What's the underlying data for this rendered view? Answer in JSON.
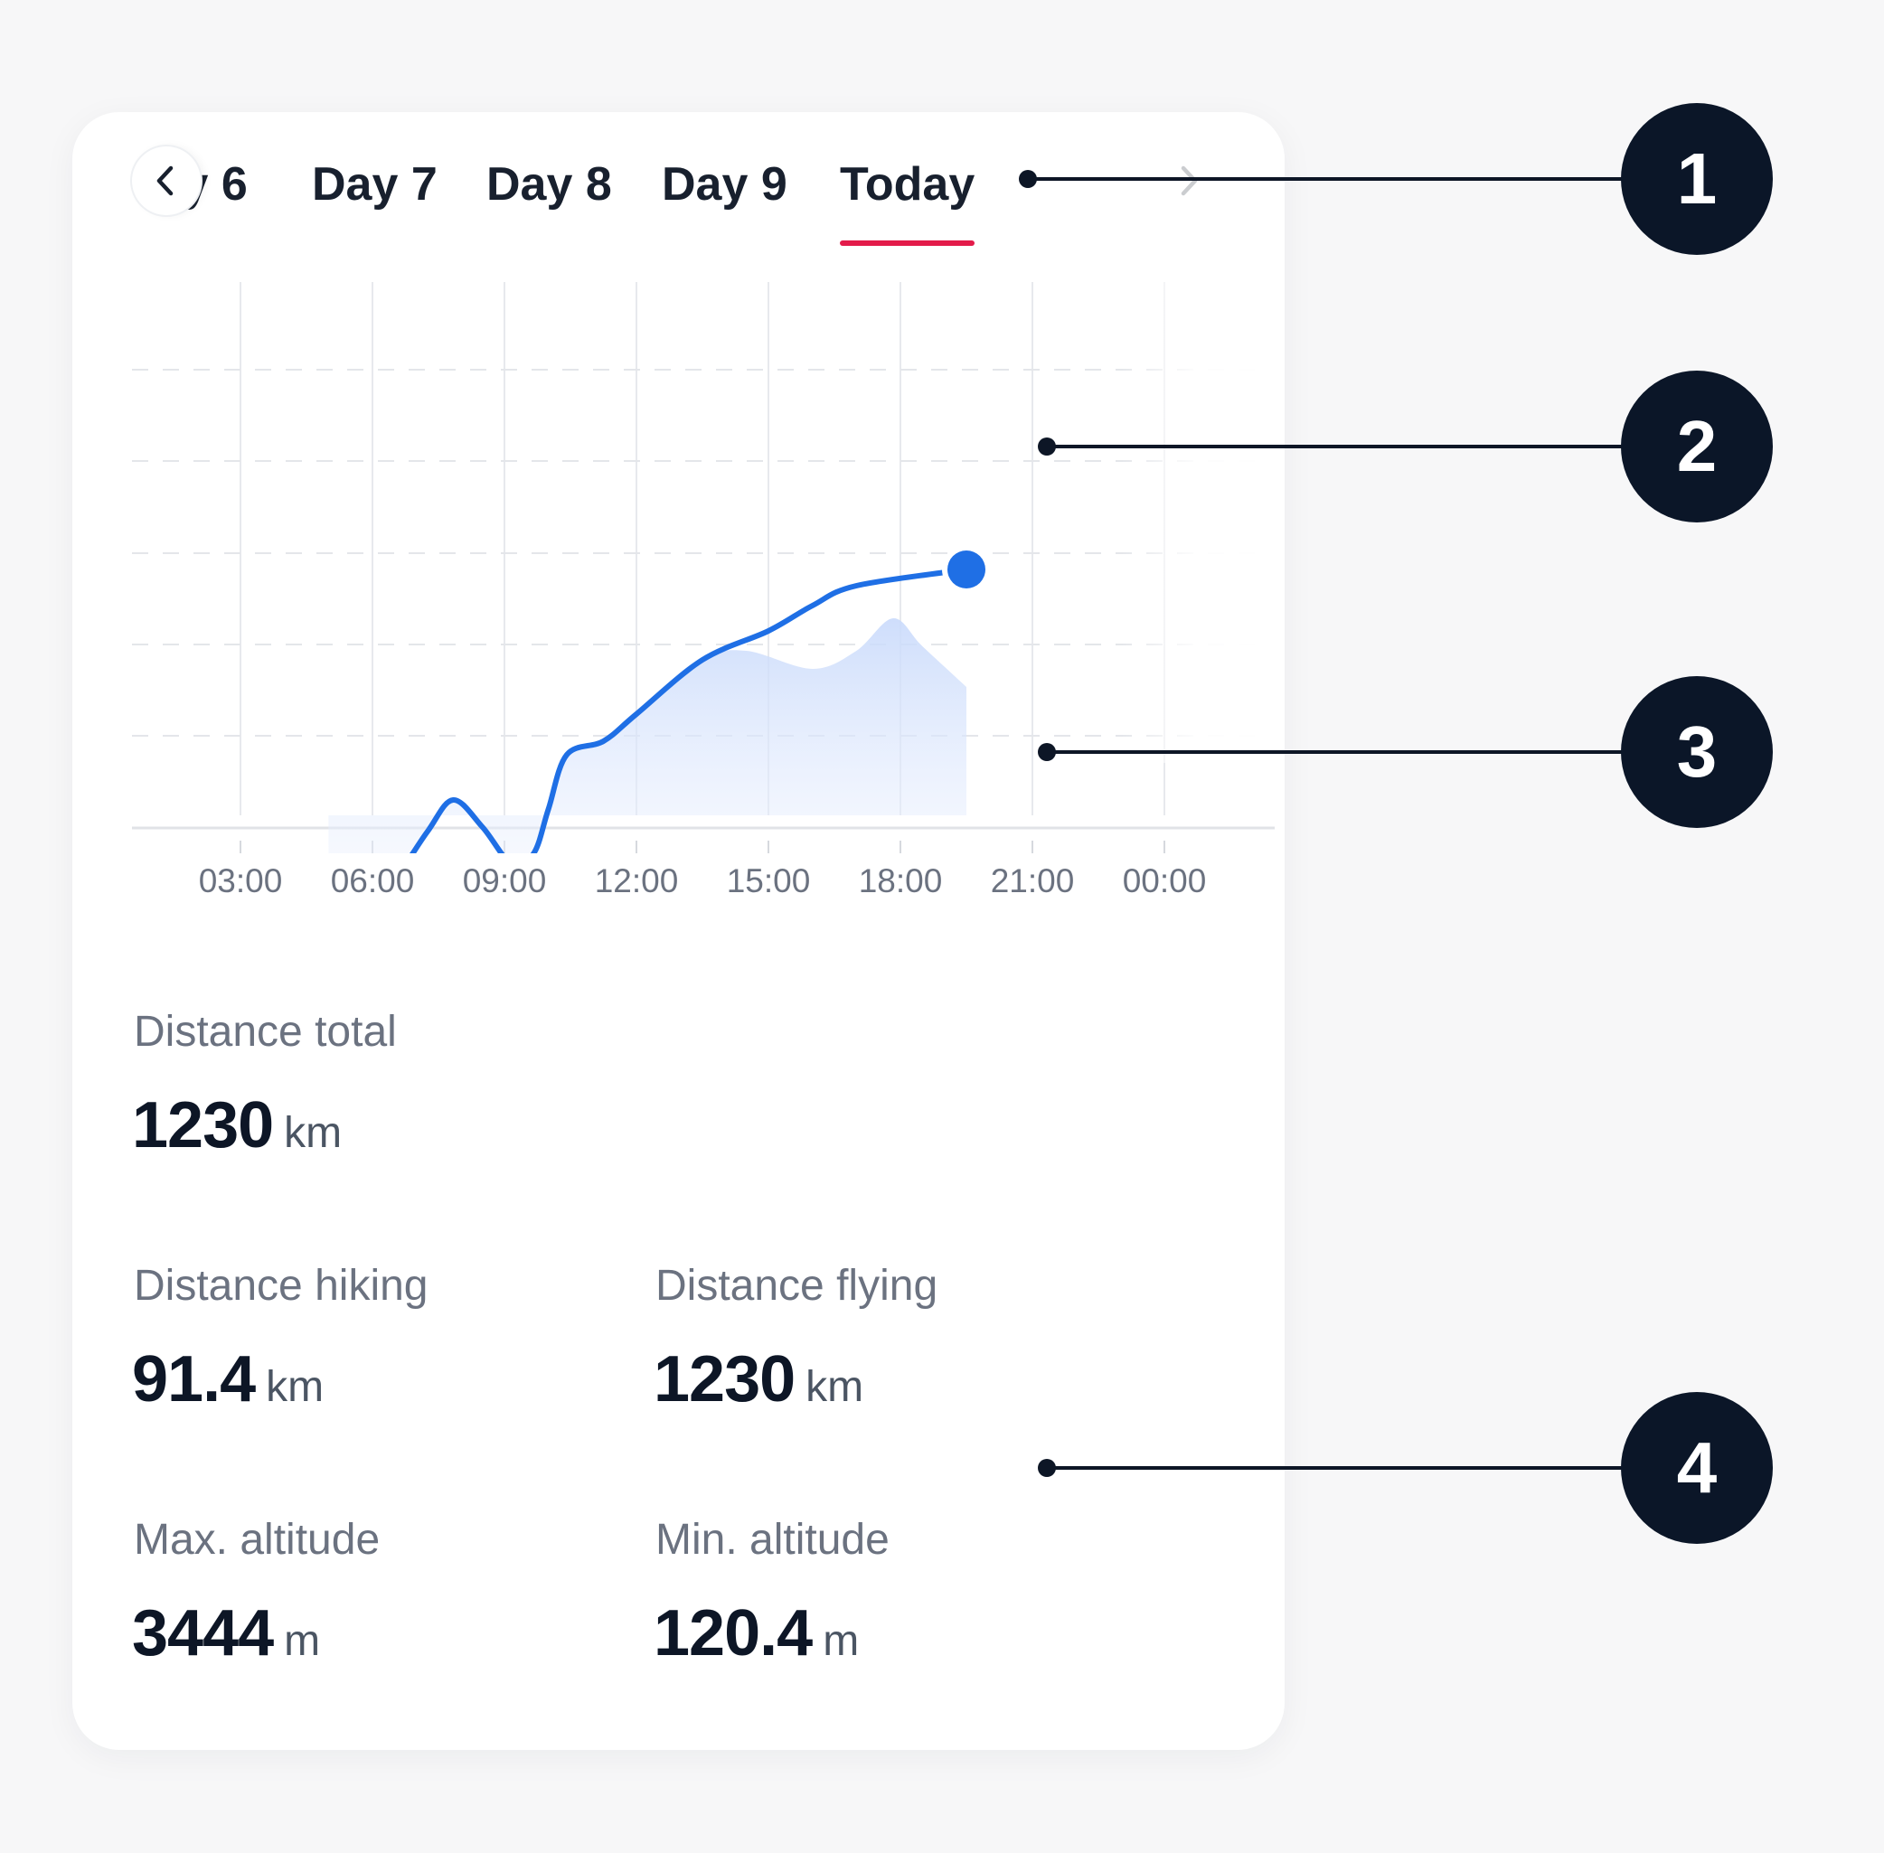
{
  "tabs": {
    "items": [
      {
        "label": "Day 6"
      },
      {
        "label": "Day 7"
      },
      {
        "label": "Day 8"
      },
      {
        "label": "Day 9"
      },
      {
        "label": "Today",
        "active": true
      }
    ],
    "prev_icon": "chevron-left-icon",
    "next_icon": "chevron-right-icon",
    "active_color": "#e31b4a"
  },
  "chart_data": {
    "type": "line",
    "x_ticks": [
      "03:00",
      "06:00",
      "09:00",
      "12:00",
      "15:00",
      "18:00",
      "21:00",
      "00:00"
    ],
    "series": [
      {
        "color": "#1f6fe5",
        "points": [
          {
            "t": "05:00",
            "v": 0.95
          },
          {
            "t": "06:00",
            "v": 0.82
          },
          {
            "t": "06:30",
            "v": 1.8
          },
          {
            "t": "07:15",
            "v": 7.0
          },
          {
            "t": "07:50",
            "v": 10.5
          },
          {
            "t": "08:30",
            "v": 7.5
          },
          {
            "t": "09:10",
            "v": 3.4
          },
          {
            "t": "09:40",
            "v": 4.6
          },
          {
            "t": "10:00",
            "v": 9.5
          },
          {
            "t": "10:25",
            "v": 15.5
          },
          {
            "t": "11:15",
            "v": 17.0
          },
          {
            "t": "12:00",
            "v": 20.0
          },
          {
            "t": "13:30",
            "v": 26.0
          },
          {
            "t": "15:00",
            "v": 29.2
          },
          {
            "t": "16:00",
            "v": 32.0
          },
          {
            "t": "17:00",
            "v": 34.2
          },
          {
            "t": "19:30",
            "v": 36.0
          }
        ],
        "area_shape": [
          {
            "t": "05:00",
            "v": 0.95
          },
          {
            "t": "06:00",
            "v": 0.82
          },
          {
            "t": "06:30",
            "v": 1.8
          },
          {
            "t": "07:15",
            "v": 7.0
          },
          {
            "t": "07:50",
            "v": 10.5
          },
          {
            "t": "08:30",
            "v": 7.5
          },
          {
            "t": "09:10",
            "v": 3.4
          },
          {
            "t": "09:40",
            "v": 4.6
          },
          {
            "t": "10:00",
            "v": 9.5
          },
          {
            "t": "10:25",
            "v": 15.5
          },
          {
            "t": "11:15",
            "v": 17.0
          },
          {
            "t": "12:00",
            "v": 20.0
          },
          {
            "t": "13:30",
            "v": 26.0
          },
          {
            "t": "14:30",
            "v": 27.0
          },
          {
            "t": "16:00",
            "v": 25.0
          },
          {
            "t": "17:00",
            "v": 27.0
          },
          {
            "t": "17:50",
            "v": 30.6
          },
          {
            "t": "18:30",
            "v": 27.5
          },
          {
            "t": "19:30",
            "v": 23.0
          }
        ],
        "current_point": {
          "t": "19:30",
          "v": 36.0
        }
      }
    ],
    "horizontal_grid": "dashed",
    "vertical_grid": true
  },
  "stats": {
    "total": {
      "label": "Distance total",
      "value": "1230",
      "unit": "km"
    },
    "hiking": {
      "label": "Distance hiking",
      "value": "91.4",
      "unit": "km"
    },
    "flying": {
      "label": "Distance flying",
      "value": "1230",
      "unit": "km"
    },
    "max_alt": {
      "label": "Max. altitude",
      "value": "3444",
      "unit": "m"
    },
    "min_alt": {
      "label": "Min. altitude",
      "value": "120.4",
      "unit": "m"
    }
  },
  "callouts": [
    "1",
    "2",
    "3",
    "4"
  ]
}
